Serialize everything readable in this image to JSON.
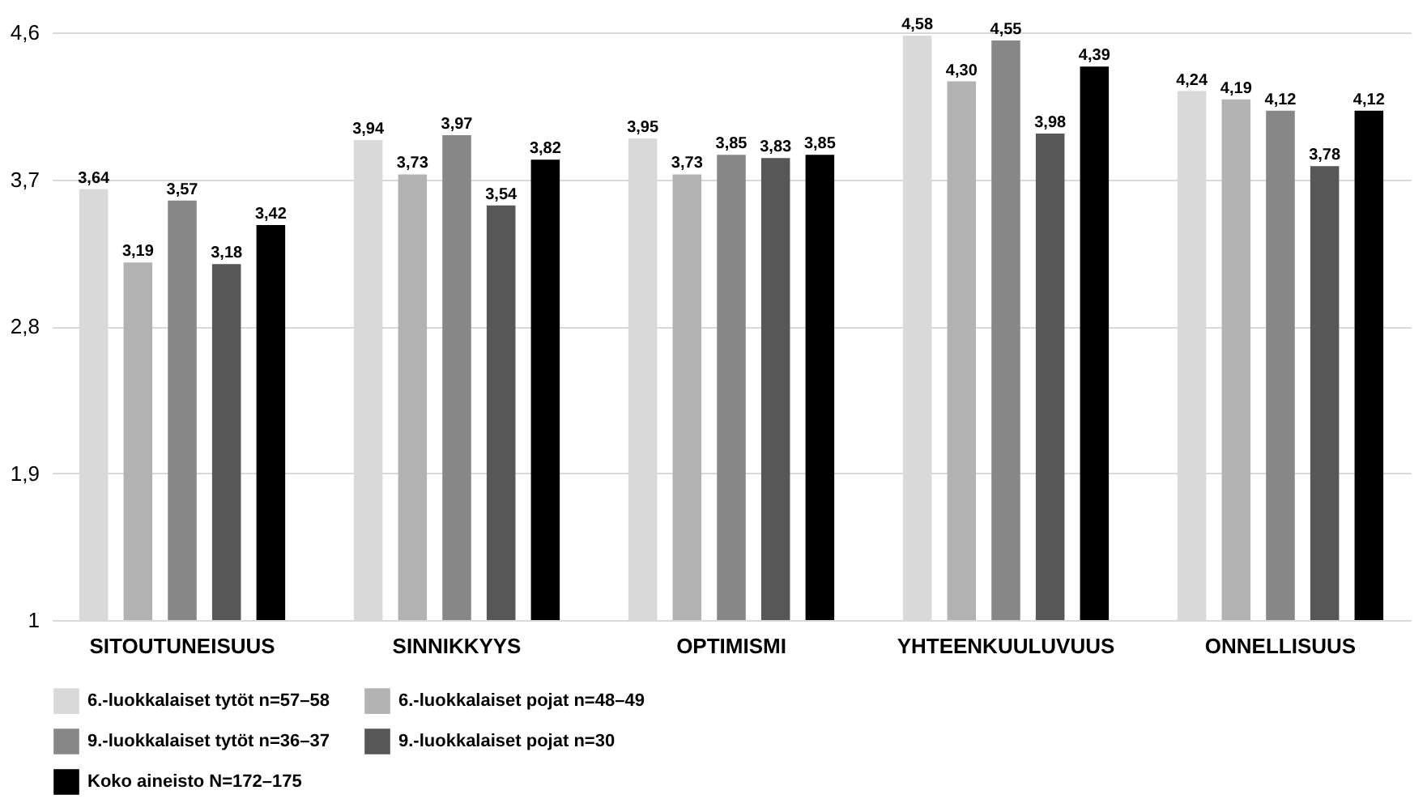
{
  "chart_data": {
    "type": "bar",
    "categories": [
      "SITOUTUNEISUUS",
      "SINNIKKYYS",
      "OPTIMISMI",
      "YHTEENKUULUVUUS",
      "ONNELLISUUS"
    ],
    "series": [
      {
        "name": "6.-luokkalaiset tytöt n=57–58",
        "color": "#d9d9d9",
        "values": [
          3.64,
          3.94,
          3.95,
          4.58,
          4.24
        ],
        "value_labels": [
          "3,64",
          "3,94",
          "3,95",
          "4,58",
          "4,24"
        ]
      },
      {
        "name": "6.-luokkalaiset pojat n=48–49",
        "color": "#b2b2b2",
        "values": [
          3.19,
          3.73,
          3.73,
          4.3,
          4.19
        ],
        "value_labels": [
          "3,19",
          "3,73",
          "3,73",
          "4,30",
          "4,19"
        ]
      },
      {
        "name": "9.-luokkalaiset tytöt n=36–37",
        "color": "#878787",
        "values": [
          3.57,
          3.97,
          3.85,
          4.55,
          4.12
        ],
        "value_labels": [
          "3,57",
          "3,97",
          "3,85",
          "4,55",
          "4,12"
        ]
      },
      {
        "name": "9.-luokkalaiset pojat n=30",
        "color": "#575757",
        "values": [
          3.18,
          3.54,
          3.83,
          3.98,
          3.78
        ],
        "value_labels": [
          "3,18",
          "3,54",
          "3,83",
          "3,98",
          "3,78"
        ]
      },
      {
        "name": "Koko aineisto N=172–175",
        "color": "#000000",
        "values": [
          3.42,
          3.82,
          3.85,
          4.39,
          4.12
        ],
        "value_labels": [
          "3,42",
          "3,82",
          "3,85",
          "4,39",
          "4,12"
        ]
      }
    ],
    "ylim": [
      1,
      4.6
    ],
    "yticks": [
      1,
      {
        "value": 1.9,
        "label": "1,9"
      },
      {
        "value": 2.8,
        "label": "2,8"
      },
      {
        "value": 3.7,
        "label": "3,7"
      },
      {
        "value": 4.6,
        "label": "4,6"
      }
    ],
    "grid": "y",
    "legend": "bottom"
  }
}
